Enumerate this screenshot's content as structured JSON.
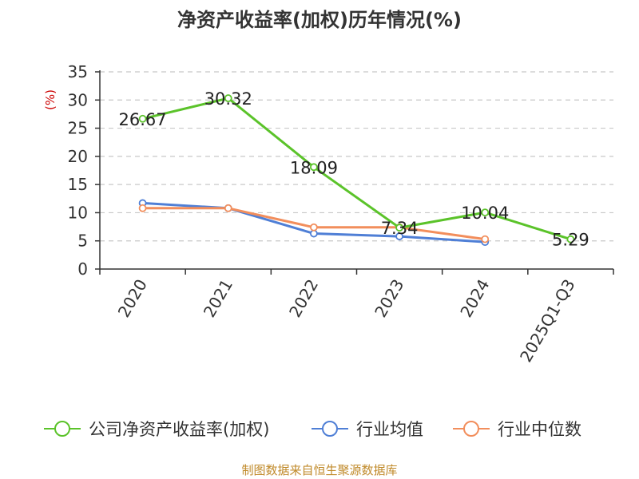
{
  "chart_data": {
    "type": "line",
    "title": "净资产收益率(加权)历年情况(%)",
    "ylabel": "(%)",
    "xlabel": "",
    "ylim": [
      0,
      35
    ],
    "yticks": [
      0,
      5,
      10,
      15,
      20,
      25,
      30,
      35
    ],
    "grid": true,
    "legend_position": "bottom",
    "categories": [
      "2020",
      "2021",
      "2022",
      "2023",
      "2024",
      "2025Q1-Q3"
    ],
    "series": [
      {
        "name": "公司净资产收益率(加权)",
        "color": "#5bc32a",
        "values": [
          26.67,
          30.32,
          18.09,
          7.34,
          10.04,
          5.29
        ],
        "labels": [
          "26.67",
          "30.32",
          "18.09",
          "7.34",
          "10.04",
          "5.29"
        ]
      },
      {
        "name": "行业均值",
        "color": "#4f7fd6",
        "values": [
          11.7,
          10.8,
          6.3,
          5.8,
          4.8,
          null
        ]
      },
      {
        "name": "行业中位数",
        "color": "#f28e5c",
        "values": [
          10.8,
          10.8,
          7.4,
          7.4,
          5.3,
          null
        ]
      }
    ],
    "footer": "制图数据来自恒生聚源数据库"
  }
}
